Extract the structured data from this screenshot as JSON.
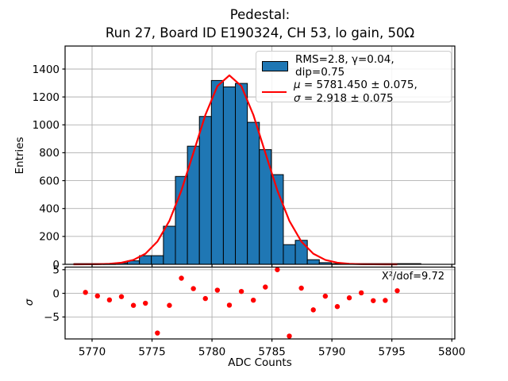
{
  "title": {
    "line1": "Pedestal:",
    "line2": "Run 27, Board ID E190324, CH 53, lo gain, 50Ω"
  },
  "main_plot": {
    "ylabel": "Entries",
    "y_ticks": [
      0,
      200,
      400,
      600,
      800,
      1000,
      1200,
      1400
    ],
    "legend": {
      "hist_label": "RMS=2.8, γ=0.04, dip=0.75",
      "mu_symbol": "μ",
      "mu_rest": " = 5781.450 ± 0.075,",
      "sigma_symbol": "σ",
      "sigma_rest": " = 2.918 ± 0.075"
    }
  },
  "residual_plot": {
    "ylabel": "σ",
    "y_tick_labels": [
      "5",
      "0",
      "−5"
    ],
    "y_tick_values": [
      5,
      0,
      -5
    ],
    "annotation": "X²/dof=9.72"
  },
  "xaxis": {
    "label": "ADC Counts",
    "ticks": [
      5770,
      5775,
      5780,
      5785,
      5790,
      5795,
      5800
    ]
  },
  "chart_data": [
    {
      "type": "bar",
      "title": "Pedestal: Run 27, Board ID E190324, CH 53, lo gain, 50Ω",
      "ylabel": "Entries",
      "xlabel": "ADC Counts",
      "xlim": [
        5767.75,
        5800.25
      ],
      "ylim": [
        0,
        1565
      ],
      "grid": true,
      "bar_color": "#1f77b4",
      "bar_edge_color": "#000000",
      "bin_width": 1,
      "bin_centers": [
        5771.45,
        5772.45,
        5773.45,
        5774.45,
        5775.45,
        5776.45,
        5777.45,
        5778.45,
        5779.45,
        5780.45,
        5781.45,
        5782.45,
        5783.45,
        5784.45,
        5785.45,
        5786.45,
        5787.45,
        5788.45,
        5789.45,
        5790.45
      ],
      "values": [
        1,
        10,
        25,
        62,
        62,
        273,
        630,
        847,
        1060,
        1318,
        1272,
        1297,
        1018,
        822,
        643,
        141,
        172,
        33,
        12,
        2
      ],
      "baseline_x": [
        5768.45,
        5797.45
      ],
      "fit_curve": {
        "shape": "gaussian",
        "mu": 5781.45,
        "sigma": 2.918,
        "amplitude": 1355,
        "color": "#ff0000",
        "x_start": 5768.45,
        "x_end": 5795.45,
        "x_step": 1
      },
      "legend_entries": [
        "RMS=2.8, γ=0.04, dip=0.75",
        "μ = 5781.450 ± 0.075, σ = 2.918 ± 0.075"
      ],
      "legend_position": "upper right"
    },
    {
      "type": "scatter",
      "ylabel": "σ",
      "xlim": [
        5767.75,
        5800.25
      ],
      "ylim": [
        -9.65,
        5.55
      ],
      "grid": true,
      "point_color": "#ff0000",
      "x": [
        5769.45,
        5770.45,
        5771.45,
        5772.45,
        5773.45,
        5774.45,
        5775.45,
        5776.45,
        5777.45,
        5778.45,
        5779.45,
        5780.45,
        5781.45,
        5782.45,
        5783.45,
        5784.45,
        5785.45,
        5786.45,
        5787.45,
        5788.45,
        5789.45,
        5790.45,
        5791.45,
        5792.45,
        5793.45,
        5794.45,
        5795.45
      ],
      "y": [
        0.2,
        -0.55,
        -1.4,
        -0.7,
        -2.55,
        -2.1,
        -8.4,
        -2.55,
        3.2,
        1.0,
        -1.1,
        0.67,
        -2.5,
        0.4,
        -1.45,
        1.33,
        5.0,
        -9.05,
        1.1,
        -3.5,
        -0.6,
        -2.8,
        -0.95,
        0.1,
        -1.55,
        -1.5,
        0.55
      ],
      "annotation": "X²/dof=9.72"
    }
  ],
  "colors": {
    "bar_fill": "#1f77b4",
    "fit_line": "#ff0000",
    "residual_points": "#ff0000",
    "grid": "#b0b0b0",
    "axes": "#000000",
    "background": "#ffffff"
  }
}
